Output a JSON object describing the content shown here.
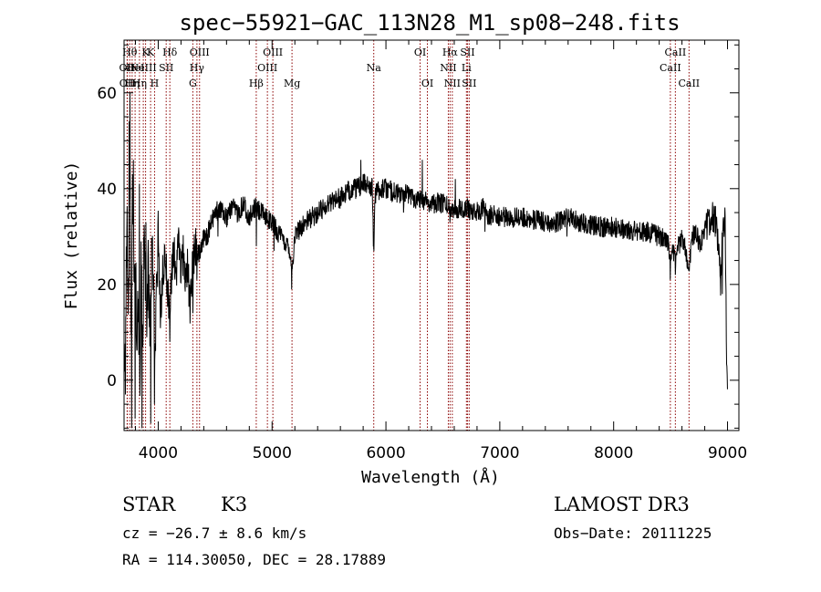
{
  "chart_data": {
    "type": "line",
    "title": "spec−55921−GAC_113N28_M1_sp08−248.fits",
    "xlabel": "Wavelength (Å)",
    "ylabel": "Flux (relative)",
    "xlim": [
      3700,
      9100
    ],
    "ylim": [
      -10.5,
      71
    ],
    "x_ticks": [
      {
        "value": 4000,
        "label": "4000"
      },
      {
        "value": 5000,
        "label": "5000"
      },
      {
        "value": 6000,
        "label": "6000"
      },
      {
        "value": 7000,
        "label": "7000"
      },
      {
        "value": 8000,
        "label": "8000"
      },
      {
        "value": 9000,
        "label": "9000"
      }
    ],
    "y_ticks": [
      {
        "value": 0,
        "label": "0"
      },
      {
        "value": 20,
        "label": "20"
      },
      {
        "value": 40,
        "label": "40"
      },
      {
        "value": 60,
        "label": "60"
      }
    ],
    "series": [
      {
        "name": "flux",
        "anchors": [
          [
            3700,
            12
          ],
          [
            3712,
            2
          ],
          [
            3725,
            35
          ],
          [
            3738,
            14
          ],
          [
            3750,
            52
          ],
          [
            3762,
            6
          ],
          [
            3775,
            40
          ],
          [
            3788,
            22
          ],
          [
            3800,
            28
          ],
          [
            3812,
            8
          ],
          [
            3825,
            18
          ],
          [
            3838,
            -6
          ],
          [
            3850,
            26
          ],
          [
            3862,
            4
          ],
          [
            3875,
            30
          ],
          [
            3888,
            20
          ],
          [
            3900,
            14
          ],
          [
            3912,
            26
          ],
          [
            3925,
            10
          ],
          [
            3938,
            24
          ],
          [
            3950,
            28
          ],
          [
            3962,
            16
          ],
          [
            3975,
            4
          ],
          [
            3988,
            22
          ],
          [
            4000,
            30
          ],
          [
            4020,
            14
          ],
          [
            4040,
            22
          ],
          [
            4060,
            27
          ],
          [
            4080,
            20
          ],
          [
            4100,
            12
          ],
          [
            4120,
            24
          ],
          [
            4140,
            27
          ],
          [
            4160,
            22
          ],
          [
            4180,
            29
          ],
          [
            4200,
            23
          ],
          [
            4220,
            26
          ],
          [
            4240,
            21
          ],
          [
            4260,
            25
          ],
          [
            4280,
            14
          ],
          [
            4300,
            24
          ],
          [
            4330,
            28
          ],
          [
            4360,
            26
          ],
          [
            4400,
            30
          ],
          [
            4430,
            30
          ],
          [
            4460,
            33
          ],
          [
            4500,
            35
          ],
          [
            4550,
            36
          ],
          [
            4600,
            34
          ],
          [
            4650,
            36
          ],
          [
            4700,
            35
          ],
          [
            4750,
            37
          ],
          [
            4800,
            34
          ],
          [
            4850,
            36
          ],
          [
            4900,
            35
          ],
          [
            4950,
            34
          ],
          [
            5000,
            33
          ],
          [
            5050,
            31
          ],
          [
            5100,
            29
          ],
          [
            5150,
            28
          ],
          [
            5175,
            23
          ],
          [
            5200,
            30
          ],
          [
            5250,
            32
          ],
          [
            5300,
            33
          ],
          [
            5350,
            34
          ],
          [
            5400,
            35
          ],
          [
            5450,
            36
          ],
          [
            5500,
            37
          ],
          [
            5550,
            38
          ],
          [
            5600,
            38
          ],
          [
            5650,
            39
          ],
          [
            5700,
            40
          ],
          [
            5750,
            40
          ],
          [
            5800,
            41
          ],
          [
            5850,
            41
          ],
          [
            5880,
            40
          ],
          [
            5893,
            27
          ],
          [
            5905,
            39
          ],
          [
            5950,
            40
          ],
          [
            6000,
            40
          ],
          [
            6050,
            39.5
          ],
          [
            6100,
            39
          ],
          [
            6150,
            38.5
          ],
          [
            6200,
            39
          ],
          [
            6250,
            38
          ],
          [
            6300,
            38
          ],
          [
            6350,
            37.5
          ],
          [
            6400,
            37
          ],
          [
            6450,
            37
          ],
          [
            6500,
            37
          ],
          [
            6563,
            36
          ],
          [
            6600,
            36
          ],
          [
            6650,
            36
          ],
          [
            6700,
            36
          ],
          [
            6750,
            35.5
          ],
          [
            6800,
            35
          ],
          [
            6850,
            36
          ],
          [
            6900,
            34
          ],
          [
            6950,
            35
          ],
          [
            7000,
            34
          ],
          [
            7100,
            34
          ],
          [
            7200,
            34
          ],
          [
            7300,
            33.5
          ],
          [
            7400,
            33
          ],
          [
            7500,
            33
          ],
          [
            7600,
            34
          ],
          [
            7700,
            33
          ],
          [
            7800,
            32.5
          ],
          [
            7900,
            32
          ],
          [
            8000,
            32
          ],
          [
            8100,
            31.5
          ],
          [
            8200,
            31
          ],
          [
            8300,
            31
          ],
          [
            8400,
            30
          ],
          [
            8480,
            29
          ],
          [
            8498,
            23
          ],
          [
            8520,
            28
          ],
          [
            8542,
            24
          ],
          [
            8570,
            28
          ],
          [
            8600,
            30
          ],
          [
            8640,
            26
          ],
          [
            8662,
            24
          ],
          [
            8690,
            30
          ],
          [
            8720,
            31
          ],
          [
            8760,
            28
          ],
          [
            8800,
            32
          ],
          [
            8830,
            33
          ],
          [
            8860,
            34
          ],
          [
            8900,
            33
          ],
          [
            8940,
            21
          ],
          [
            8960,
            32
          ],
          [
            8980,
            34
          ],
          [
            8993,
            3
          ],
          [
            9000,
            1
          ]
        ],
        "spikes": [
          [
            3745,
            54
          ],
          [
            3753,
            60
          ],
          [
            3766,
            -10
          ],
          [
            3782,
            46
          ],
          [
            3797,
            -8
          ],
          [
            3834,
            41
          ],
          [
            3857,
            -10
          ],
          [
            3891,
            33
          ],
          [
            3934,
            -9
          ],
          [
            3968,
            -5
          ],
          [
            4101,
            8
          ],
          [
            4305,
            14
          ],
          [
            4340,
            21
          ],
          [
            4525,
            30
          ],
          [
            4861,
            28
          ],
          [
            5018,
            27
          ],
          [
            5085,
            31
          ],
          [
            5173,
            19
          ],
          [
            5780,
            46
          ],
          [
            5890,
            28
          ],
          [
            6155,
            35
          ],
          [
            6320,
            46
          ],
          [
            6563,
            33
          ],
          [
            6610,
            42
          ],
          [
            6870,
            31
          ],
          [
            7590,
            30
          ],
          [
            8498,
            21
          ],
          [
            8542,
            22
          ],
          [
            8662,
            23
          ],
          [
            8955,
            18
          ]
        ]
      }
    ],
    "lines": [
      {
        "wavelength": 3727,
        "label": "OII",
        "row": 2
      },
      {
        "wavelength": 3729,
        "label": "OII",
        "row": 3
      },
      {
        "wavelength": 3750,
        "label": "Hθ",
        "row": 1
      },
      {
        "wavelength": 3771,
        "label": "Hη",
        "row": 3
      },
      {
        "wavelength": 3797,
        "label": "HeI",
        "row": 2
      },
      {
        "wavelength": 3835,
        "label": "Hη",
        "row": 3
      },
      {
        "wavelength": 3869,
        "label": "NeIII",
        "row": 2
      },
      {
        "wavelength": 3889,
        "label": "K",
        "row": 1
      },
      {
        "wavelength": 3933,
        "label": "K",
        "row": 1
      },
      {
        "wavelength": 3968,
        "label": "H",
        "row": 3
      },
      {
        "wavelength": 4070,
        "label": "SII",
        "row": 2
      },
      {
        "wavelength": 4102,
        "label": "Hδ",
        "row": 1
      },
      {
        "wavelength": 4304,
        "label": "G",
        "row": 3
      },
      {
        "wavelength": 4340,
        "label": "Hγ",
        "row": 2
      },
      {
        "wavelength": 4363,
        "label": "OIII",
        "row": 1
      },
      {
        "wavelength": 4861,
        "label": "Hβ",
        "row": 3
      },
      {
        "wavelength": 4959,
        "label": "OIII",
        "row": 2
      },
      {
        "wavelength": 5007,
        "label": "OIII",
        "row": 1
      },
      {
        "wavelength": 5175,
        "label": "Mg",
        "row": 3
      },
      {
        "wavelength": 5893,
        "label": "Na",
        "row": 2
      },
      {
        "wavelength": 6300,
        "label": "OI",
        "row": 1
      },
      {
        "wavelength": 6364,
        "label": "OI",
        "row": 3
      },
      {
        "wavelength": 6548,
        "label": "NII",
        "row": 2
      },
      {
        "wavelength": 6563,
        "label": "Hα",
        "row": 1
      },
      {
        "wavelength": 6583,
        "label": "NII",
        "row": 3
      },
      {
        "wavelength": 6707,
        "label": "Li",
        "row": 2
      },
      {
        "wavelength": 6716,
        "label": "SII",
        "row": 1
      },
      {
        "wavelength": 6731,
        "label": "SII",
        "row": 3
      },
      {
        "wavelength": 8498,
        "label": "CaII",
        "row": 2
      },
      {
        "wavelength": 8542,
        "label": "CaII",
        "row": 1
      },
      {
        "wavelength": 8662,
        "label": "CaII",
        "row": 3
      }
    ]
  },
  "info": {
    "class": "STAR",
    "subclass": "K3",
    "redshift": "cz = −26.7 ± 8.6 km/s",
    "coords": "RA = 114.30050, DEC =  28.17889",
    "survey": "LAMOST DR3",
    "obs_date": "Obs−Date: 20111225"
  },
  "colors": {
    "line_marker": "#8b0000",
    "spectrum": "#000000",
    "axes": "#000000"
  }
}
